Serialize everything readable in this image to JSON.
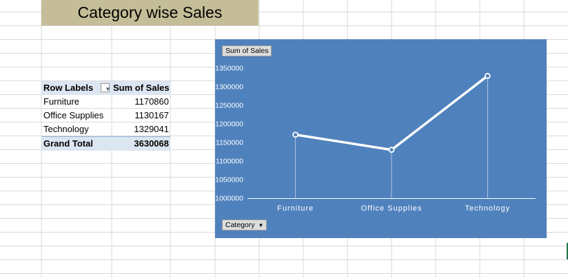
{
  "sheet": {
    "title": "Category wise Sales"
  },
  "pivot": {
    "header": {
      "row_labels": "Row Labels",
      "value_label": "Sum of Sales"
    },
    "rows": [
      {
        "label": "Furniture",
        "value": "1170860"
      },
      {
        "label": "Office Supplies",
        "value": "1130167"
      },
      {
        "label": "Technology",
        "value": "1329041"
      }
    ],
    "total": {
      "label": "Grand Total",
      "value": "3630068"
    }
  },
  "chart": {
    "value_field_button": "Sum of Sales",
    "axis_field_button": "Category",
    "line_color": "#ffffff",
    "background_color": "#4f81bd"
  },
  "chart_data": {
    "type": "line",
    "categories": [
      "Furniture",
      "Office Supplies",
      "Technology"
    ],
    "series": [
      {
        "values": [
          1170860,
          1130167,
          1329041
        ]
      }
    ],
    "ylim": [
      1000000,
      1350000
    ],
    "yticks": [
      1000000,
      1050000,
      1100000,
      1150000,
      1200000,
      1250000,
      1300000,
      1350000
    ],
    "ytick_labels": [
      "1000000",
      "1050000",
      "1100000",
      "1150000",
      "1200000",
      "1250000",
      "1300000",
      "1350000"
    ],
    "grid": false,
    "legend": "none"
  }
}
